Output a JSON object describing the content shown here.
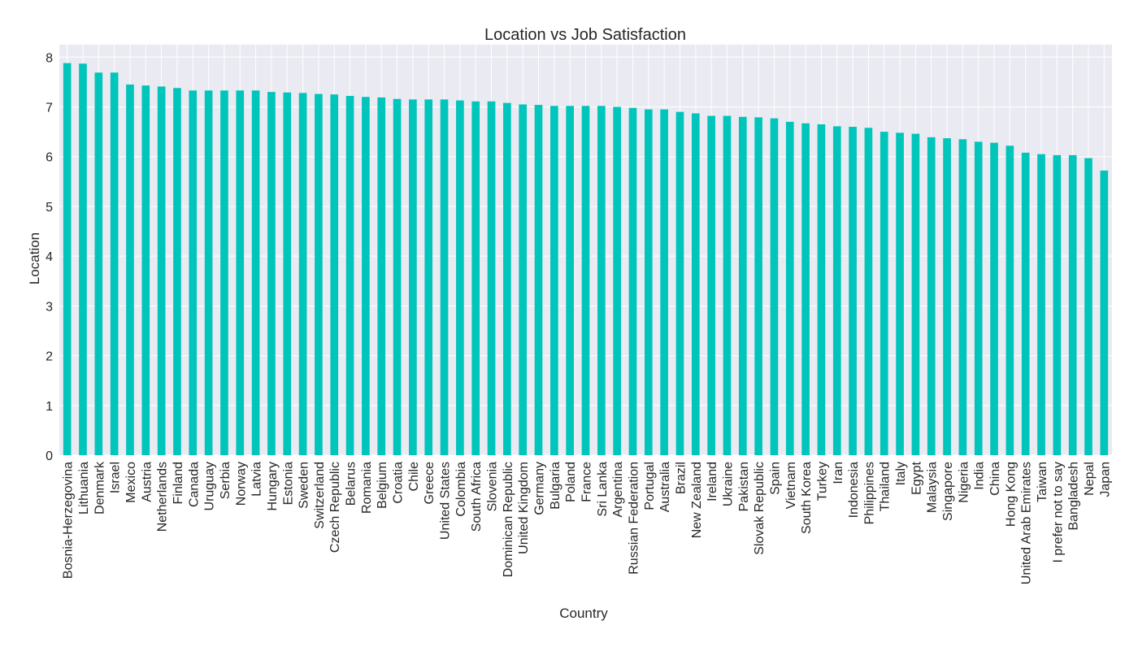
{
  "chart_data": {
    "type": "bar",
    "title": "Location vs Job Satisfaction",
    "xlabel": "Country",
    "ylabel": "Location",
    "ylim": [
      0,
      8.25
    ],
    "yticks": [
      0,
      1,
      2,
      3,
      4,
      5,
      6,
      7,
      8
    ],
    "grid": true,
    "legend": "none",
    "colors": {
      "bar": "#00c5bb",
      "plot_bg": "#eaeaf2",
      "grid": "#ffffff",
      "text": "#262626"
    },
    "categories": [
      "Bosnia-Herzegovina",
      "Lithuania",
      "Denmark",
      "Israel",
      "Mexico",
      "Austria",
      "Netherlands",
      "Finland",
      "Canada",
      "Uruguay",
      "Serbia",
      "Norway",
      "Latvia",
      "Hungary",
      "Estonia",
      "Sweden",
      "Switzerland",
      "Czech Republic",
      "Belarus",
      "Romania",
      "Belgium",
      "Croatia",
      "Chile",
      "Greece",
      "United States",
      "Colombia",
      "South Africa",
      "Slovenia",
      "Dominican Republic",
      "United Kingdom",
      "Germany",
      "Bulgaria",
      "Poland",
      "France",
      "Sri Lanka",
      "Argentina",
      "Russian Federation",
      "Portugal",
      "Australia",
      "Brazil",
      "New Zealand",
      "Ireland",
      "Ukraine",
      "Pakistan",
      "Slovak Republic",
      "Spain",
      "Vietnam",
      "South Korea",
      "Turkey",
      "Iran",
      "Indonesia",
      "Philippines",
      "Thailand",
      "Italy",
      "Egypt",
      "Malaysia",
      "Singapore",
      "Nigeria",
      "India",
      "China",
      "Hong Kong",
      "United Arab Emirates",
      "Taiwan",
      "I prefer not to say",
      "Bangladesh",
      "Nepal",
      "Japan"
    ],
    "values": [
      7.88,
      7.87,
      7.69,
      7.69,
      7.45,
      7.43,
      7.41,
      7.38,
      7.33,
      7.33,
      7.33,
      7.33,
      7.33,
      7.3,
      7.29,
      7.28,
      7.26,
      7.25,
      7.22,
      7.2,
      7.19,
      7.16,
      7.15,
      7.15,
      7.15,
      7.13,
      7.11,
      7.11,
      7.08,
      7.05,
      7.04,
      7.02,
      7.02,
      7.02,
      7.02,
      7.0,
      6.98,
      6.95,
      6.95,
      6.9,
      6.87,
      6.82,
      6.82,
      6.8,
      6.79,
      6.77,
      6.7,
      6.67,
      6.65,
      6.61,
      6.6,
      6.58,
      6.5,
      6.48,
      6.46,
      6.39,
      6.37,
      6.35,
      6.3,
      6.28,
      6.22,
      6.08,
      6.05,
      6.03,
      6.03,
      5.97,
      5.72
    ]
  }
}
